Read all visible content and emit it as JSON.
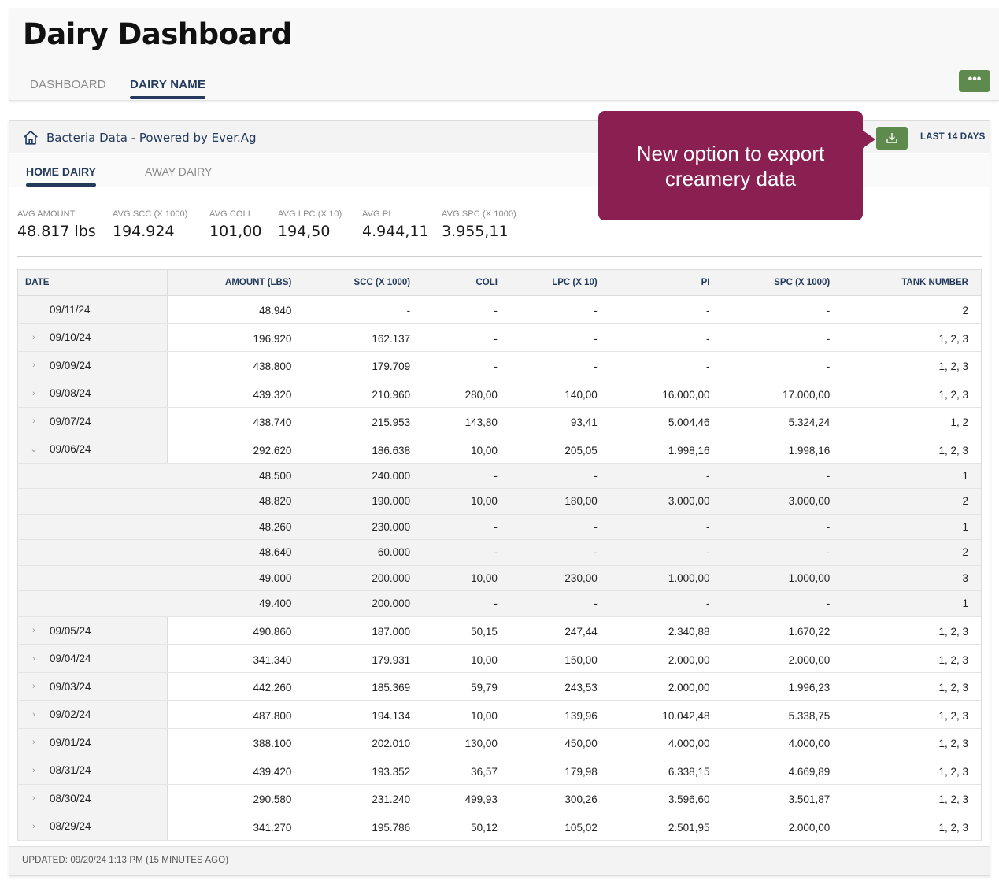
{
  "header": {
    "title": "Dairy Dashboard",
    "tabs": [
      {
        "label": "DASHBOARD"
      },
      {
        "label": "DAIRY NAME"
      }
    ],
    "more_label": "•••"
  },
  "card": {
    "title": "Bacteria Data - Powered by Ever.Ag",
    "range_label": "LAST 14 DAYS",
    "sub_tabs": [
      {
        "label": "HOME DAIRY"
      },
      {
        "label": "AWAY DAIRY"
      }
    ],
    "stats": [
      {
        "label": "AVG AMOUNT",
        "value": "48.817 lbs"
      },
      {
        "label": "AVG SCC (X 1000)",
        "value": "194.924"
      },
      {
        "label": "AVG COLI",
        "value": "101,00"
      },
      {
        "label": "AVG LPC (X 10)",
        "value": "194,50"
      },
      {
        "label": "AVG PI",
        "value": "4.944,11"
      },
      {
        "label": "AVG SPC (X 1000)",
        "value": "3.955,11"
      }
    ],
    "table": {
      "headers": [
        "DATE",
        "AMOUNT (LBS)",
        "SCC (X 1000)",
        "COLI",
        "LPC (X 10)",
        "PI",
        "SPC (X 1000)",
        "TANK NUMBER"
      ],
      "rows": [
        {
          "type": "main",
          "chevron": "",
          "cells": [
            "09/11/24",
            "48.940",
            "-",
            "-",
            "-",
            "-",
            "-",
            "2"
          ]
        },
        {
          "type": "main",
          "chevron": "›",
          "cells": [
            "09/10/24",
            "196.920",
            "162.137",
            "-",
            "-",
            "-",
            "-",
            "1, 2, 3"
          ]
        },
        {
          "type": "main",
          "chevron": "›",
          "cells": [
            "09/09/24",
            "438.800",
            "179.709",
            "-",
            "-",
            "-",
            "-",
            "1, 2, 3"
          ]
        },
        {
          "type": "main",
          "chevron": "›",
          "cells": [
            "09/08/24",
            "439.320",
            "210.960",
            "280,00",
            "140,00",
            "16.000,00",
            "17.000,00",
            "1, 2, 3"
          ]
        },
        {
          "type": "main",
          "chevron": "›",
          "cells": [
            "09/07/24",
            "438.740",
            "215.953",
            "143,80",
            "93,41",
            "5.004,46",
            "5.324,24",
            "1, 2"
          ]
        },
        {
          "type": "main",
          "chevron": "⌄",
          "cells": [
            "09/06/24",
            "292.620",
            "186.638",
            "10,00",
            "205,05",
            "1.998,16",
            "1.998,16",
            "1, 2, 3"
          ]
        },
        {
          "type": "sub",
          "chevron": "",
          "cells": [
            "",
            "48.500",
            "240.000",
            "-",
            "-",
            "-",
            "-",
            "1"
          ]
        },
        {
          "type": "sub",
          "chevron": "",
          "cells": [
            "",
            "48.820",
            "190.000",
            "10,00",
            "180,00",
            "3.000,00",
            "3.000,00",
            "2"
          ]
        },
        {
          "type": "sub",
          "chevron": "",
          "cells": [
            "",
            "48.260",
            "230.000",
            "-",
            "-",
            "-",
            "-",
            "1"
          ]
        },
        {
          "type": "sub",
          "chevron": "",
          "cells": [
            "",
            "48.640",
            "60.000",
            "-",
            "-",
            "-",
            "-",
            "2"
          ]
        },
        {
          "type": "sub",
          "chevron": "",
          "cells": [
            "",
            "49.000",
            "200.000",
            "10,00",
            "230,00",
            "1.000,00",
            "1.000,00",
            "3"
          ]
        },
        {
          "type": "sub",
          "chevron": "",
          "cells": [
            "",
            "49.400",
            "200.000",
            "-",
            "-",
            "-",
            "-",
            "1"
          ]
        },
        {
          "type": "main",
          "chevron": "›",
          "cells": [
            "09/05/24",
            "490.860",
            "187.000",
            "50,15",
            "247,44",
            "2.340,88",
            "1.670,22",
            "1, 2, 3"
          ]
        },
        {
          "type": "main",
          "chevron": "›",
          "cells": [
            "09/04/24",
            "341.340",
            "179.931",
            "10,00",
            "150,00",
            "2.000,00",
            "2.000,00",
            "1, 2, 3"
          ]
        },
        {
          "type": "main",
          "chevron": "›",
          "cells": [
            "09/03/24",
            "442.260",
            "185.369",
            "59,79",
            "243,53",
            "2.000,00",
            "1.996,23",
            "1, 2, 3"
          ]
        },
        {
          "type": "main",
          "chevron": "›",
          "cells": [
            "09/02/24",
            "487.800",
            "194.134",
            "10,00",
            "139,96",
            "10.042,48",
            "5.338,75",
            "1, 2, 3"
          ]
        },
        {
          "type": "main",
          "chevron": "›",
          "cells": [
            "09/01/24",
            "388.100",
            "202.010",
            "130,00",
            "450,00",
            "4.000,00",
            "4.000,00",
            "1, 2, 3"
          ]
        },
        {
          "type": "main",
          "chevron": "›",
          "cells": [
            "08/31/24",
            "439.420",
            "193.352",
            "36,57",
            "179,98",
            "6.338,15",
            "4.669,89",
            "1, 2, 3"
          ]
        },
        {
          "type": "main",
          "chevron": "›",
          "cells": [
            "08/30/24",
            "290.580",
            "231.240",
            "499,93",
            "300,26",
            "3.596,60",
            "3.501,87",
            "1, 2, 3"
          ]
        },
        {
          "type": "main",
          "chevron": "›",
          "cells": [
            "08/29/24",
            "341.270",
            "195.786",
            "50,12",
            "105,02",
            "2.501,95",
            "2.000,00",
            "1, 2, 3"
          ]
        }
      ]
    },
    "updated": "UPDATED: 09/20/24 1:13 PM (15 MINUTES AGO)"
  },
  "callout": {
    "line1": "New option to export",
    "line2": "creamery data"
  },
  "icons": {
    "home": "home-icon",
    "export": "download-icon",
    "more": "more-icon",
    "expand": "chevron-right-icon",
    "collapse": "chevron-down-icon"
  },
  "colors": {
    "accent": "#233a5c",
    "action": "#5f8a4d",
    "callout": "#8a1f52"
  }
}
